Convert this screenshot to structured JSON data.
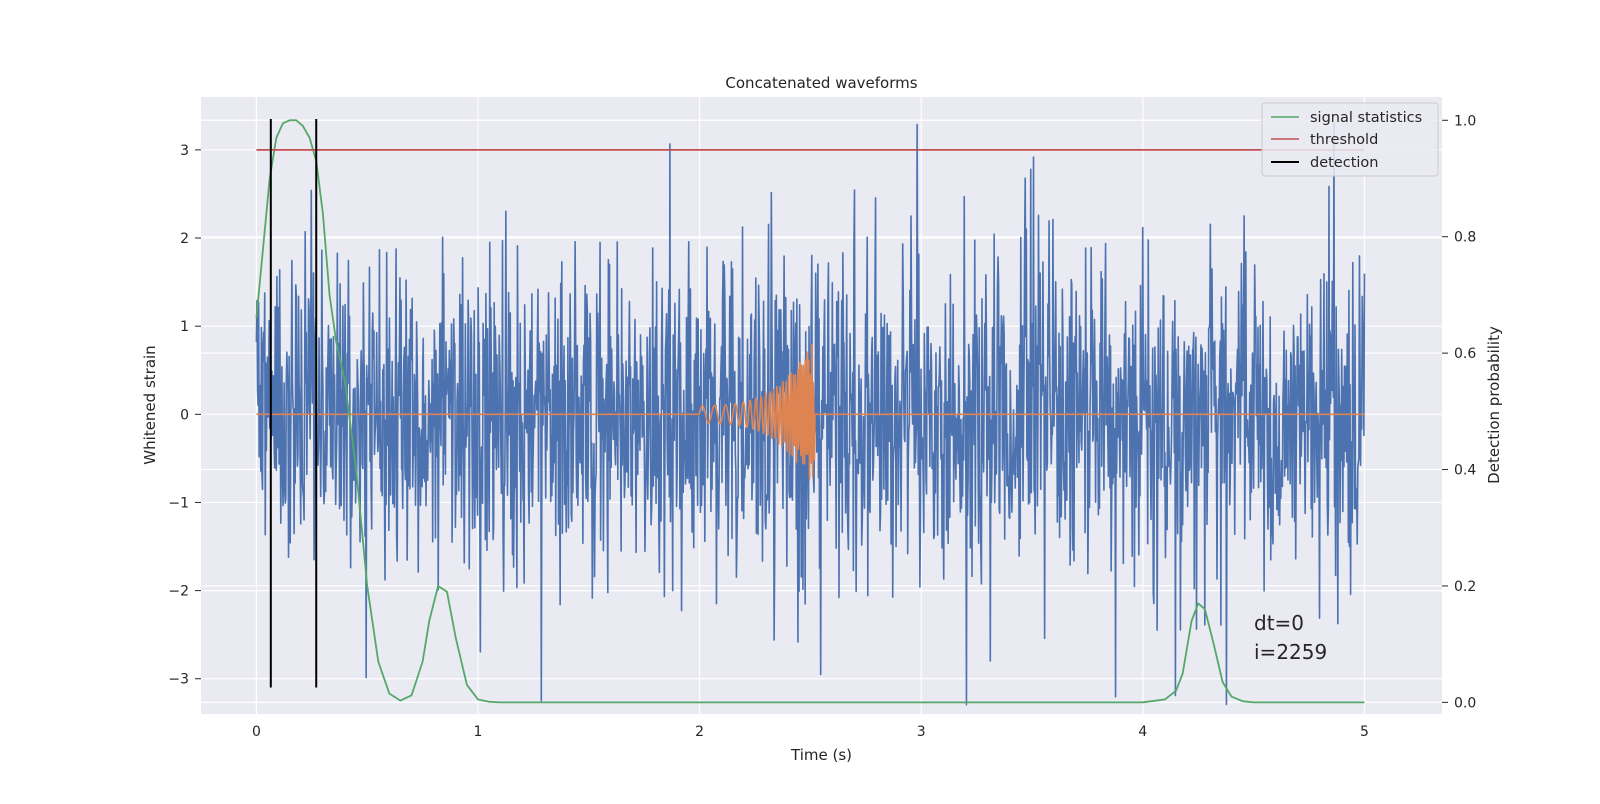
{
  "chart_data": {
    "type": "line",
    "title": "Concatenated waveforms",
    "xlabel": "Time (s)",
    "ylabel_left": "Whitened strain",
    "ylabel_right": "Detection probability",
    "xlim": [
      -0.25,
      5.35
    ],
    "ylim_left": [
      -3.4,
      3.6
    ],
    "ylim_right": [
      -0.02,
      1.04
    ],
    "xticks": [
      0,
      1,
      2,
      3,
      4,
      5
    ],
    "xtick_labels": [
      "0",
      "1",
      "2",
      "3",
      "4",
      "5"
    ],
    "yticks_left": [
      -3,
      -2,
      -1,
      0,
      1,
      2,
      3
    ],
    "ytick_labels_left": [
      "−3",
      "−2",
      "−1",
      "0",
      "1",
      "2",
      "3"
    ],
    "yticks_right": [
      0.0,
      0.2,
      0.4,
      0.6,
      0.8,
      1.0
    ],
    "ytick_labels_right": [
      "0.0",
      "0.2",
      "0.4",
      "0.6",
      "0.8",
      "1.0"
    ],
    "grid": true,
    "legend_position": "top-right",
    "annotation_lines": [
      "dt=0",
      "i=2259"
    ],
    "colors": {
      "background": "#eaeaf2",
      "grid": "#ffffff",
      "strain": "#4c72b0",
      "injected": "#dd8452",
      "signal_statistics": "#55a868",
      "threshold": "#c44e52",
      "detection": "#000000"
    },
    "series": [
      {
        "name": "strain",
        "axis": "left",
        "style": "noise",
        "x_range": [
          0.0,
          5.0
        ],
        "samples": 2000,
        "typical_amplitude": 0.9,
        "peak_amplitude": 3.3,
        "seed": 2259
      },
      {
        "name": "injected waveform",
        "axis": "left",
        "style": "chirp",
        "x_range": [
          0.0,
          5.0
        ],
        "chirp_start": 2.0,
        "chirp_end": 2.52,
        "start_amplitude": 0.1,
        "end_amplitude": 0.85,
        "start_cycles_per_s": 18,
        "end_cycles_per_s": 150
      },
      {
        "name": "signal statistics",
        "axis": "right",
        "x": [
          0.0,
          0.03,
          0.06,
          0.09,
          0.12,
          0.15,
          0.18,
          0.21,
          0.24,
          0.27,
          0.3,
          0.33,
          0.36,
          0.4,
          0.45,
          0.5,
          0.55,
          0.6,
          0.65,
          0.7,
          0.75,
          0.78,
          0.82,
          0.86,
          0.9,
          0.95,
          1.0,
          1.05,
          1.1,
          1.5,
          2.0,
          3.0,
          4.0,
          4.1,
          4.15,
          4.18,
          4.22,
          4.25,
          4.28,
          4.32,
          4.36,
          4.4,
          4.45,
          4.5,
          5.0
        ],
        "y": [
          0.66,
          0.78,
          0.9,
          0.97,
          0.995,
          1.0,
          1.0,
          0.99,
          0.97,
          0.93,
          0.84,
          0.7,
          0.62,
          0.55,
          0.4,
          0.2,
          0.07,
          0.015,
          0.003,
          0.012,
          0.07,
          0.14,
          0.2,
          0.19,
          0.11,
          0.03,
          0.005,
          0.001,
          0.0,
          0.0,
          0.0,
          0.0,
          0.0,
          0.005,
          0.02,
          0.05,
          0.14,
          0.17,
          0.16,
          0.1,
          0.035,
          0.01,
          0.002,
          0.0,
          0.0
        ]
      },
      {
        "name": "threshold",
        "axis": "left",
        "x": [
          0.0,
          5.0
        ],
        "y": [
          3.0,
          3.0
        ]
      },
      {
        "name": "detection",
        "axis": "left",
        "style": "vertical",
        "x": [
          0.065,
          0.27
        ],
        "y_range": [
          -3.1,
          3.35
        ]
      }
    ],
    "legend": [
      "signal statistics",
      "threshold",
      "detection"
    ]
  }
}
